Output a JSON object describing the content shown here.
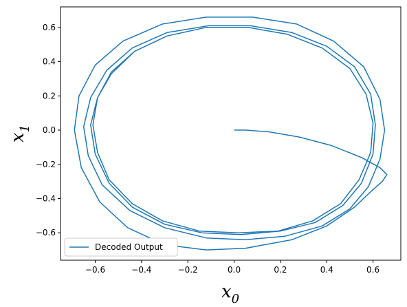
{
  "chart_data": {
    "type": "line",
    "title": "",
    "xlabel_main": "x",
    "xlabel_sub": "0",
    "ylabel_main": "x",
    "ylabel_sub": "1",
    "xlim": [
      -0.75,
      0.72
    ],
    "ylim": [
      -0.76,
      0.72
    ],
    "xticks": [
      -0.6,
      -0.4,
      -0.2,
      0.0,
      0.2,
      0.4,
      0.6
    ],
    "xtick_labels": [
      "−0.6",
      "−0.4",
      "−0.2",
      "0.0",
      "0.2",
      "0.4",
      "0.6"
    ],
    "yticks": [
      -0.6,
      -0.4,
      -0.2,
      0.0,
      0.2,
      0.4,
      0.6
    ],
    "ytick_labels": [
      "−0.6",
      "−0.4",
      "−0.2",
      "0.0",
      "0.2",
      "0.4",
      "0.6"
    ],
    "grid": false,
    "legend_position": "lower-left",
    "series": [
      {
        "name": "Decoded Output",
        "color": "#1f77b4",
        "description_points": [
          [
            0.0,
            0.0
          ],
          [
            0.05,
            0.0
          ],
          [
            0.15,
            -0.01
          ],
          [
            0.28,
            -0.04
          ],
          [
            0.42,
            -0.09
          ],
          [
            0.55,
            -0.16
          ],
          [
            0.63,
            -0.22
          ],
          [
            0.66,
            -0.26
          ],
          [
            0.64,
            -0.3
          ],
          [
            0.59,
            -0.36
          ],
          [
            0.52,
            -0.45
          ],
          [
            0.4,
            -0.56
          ],
          [
            0.25,
            -0.64
          ],
          [
            0.05,
            -0.69
          ],
          [
            -0.12,
            -0.7
          ],
          [
            -0.3,
            -0.67
          ],
          [
            -0.46,
            -0.57
          ],
          [
            -0.58,
            -0.42
          ],
          [
            -0.66,
            -0.22
          ],
          [
            -0.69,
            0.0
          ],
          [
            -0.67,
            0.2
          ],
          [
            -0.6,
            0.38
          ],
          [
            -0.48,
            0.52
          ],
          [
            -0.31,
            0.62
          ],
          [
            -0.12,
            0.66
          ],
          [
            0.08,
            0.66
          ],
          [
            0.27,
            0.62
          ],
          [
            0.43,
            0.52
          ],
          [
            0.56,
            0.37
          ],
          [
            0.63,
            0.18
          ],
          [
            0.65,
            0.0
          ],
          [
            0.63,
            -0.17
          ],
          [
            0.58,
            -0.33
          ],
          [
            0.5,
            -0.46
          ],
          [
            0.38,
            -0.56
          ],
          [
            0.22,
            -0.62
          ],
          [
            0.05,
            -0.64
          ],
          [
            -0.12,
            -0.63
          ],
          [
            -0.3,
            -0.57
          ],
          [
            -0.45,
            -0.47
          ],
          [
            -0.57,
            -0.32
          ],
          [
            -0.63,
            -0.15
          ],
          [
            -0.65,
            0.02
          ],
          [
            -0.62,
            0.19
          ],
          [
            -0.55,
            0.35
          ],
          [
            -0.44,
            0.48
          ],
          [
            -0.29,
            0.57
          ],
          [
            -0.11,
            0.61
          ],
          [
            0.07,
            0.61
          ],
          [
            0.25,
            0.57
          ],
          [
            0.4,
            0.49
          ],
          [
            0.52,
            0.37
          ],
          [
            0.59,
            0.21
          ],
          [
            0.61,
            0.03
          ],
          [
            0.6,
            -0.14
          ],
          [
            0.55,
            -0.31
          ],
          [
            0.47,
            -0.44
          ],
          [
            0.35,
            -0.54
          ],
          [
            0.2,
            -0.59
          ],
          [
            0.03,
            -0.61
          ],
          [
            -0.14,
            -0.6
          ],
          [
            -0.3,
            -0.55
          ],
          [
            -0.44,
            -0.45
          ],
          [
            -0.54,
            -0.31
          ],
          [
            -0.6,
            -0.14
          ],
          [
            -0.62,
            0.03
          ],
          [
            -0.59,
            0.19
          ],
          [
            -0.53,
            0.34
          ],
          [
            -0.43,
            0.46
          ],
          [
            -0.29,
            0.55
          ],
          [
            -0.12,
            0.6
          ],
          [
            0.06,
            0.6
          ],
          [
            0.23,
            0.56
          ],
          [
            0.38,
            0.48
          ],
          [
            0.5,
            0.36
          ],
          [
            0.57,
            0.21
          ],
          [
            0.6,
            0.04
          ],
          [
            0.59,
            -0.13
          ],
          [
            0.54,
            -0.29
          ],
          [
            0.46,
            -0.43
          ],
          [
            0.34,
            -0.53
          ],
          [
            0.19,
            -0.59
          ],
          [
            0.02,
            -0.6
          ],
          [
            -0.15,
            -0.59
          ],
          [
            -0.31,
            -0.53
          ],
          [
            -0.44,
            -0.43
          ],
          [
            -0.54,
            -0.29
          ],
          [
            -0.59,
            -0.13
          ],
          [
            -0.61,
            0.03
          ],
          [
            -0.59,
            0.19
          ],
          [
            -0.53,
            0.33
          ],
          [
            -0.43,
            0.46
          ],
          [
            -0.29,
            0.55
          ],
          [
            -0.12,
            0.6
          ],
          [
            0.06,
            0.6
          ],
          [
            0.23,
            0.56
          ],
          [
            0.38,
            0.48
          ],
          [
            0.5,
            0.36
          ],
          [
            0.57,
            0.21
          ],
          [
            0.6,
            0.04
          ],
          [
            0.59,
            -0.13
          ],
          [
            0.54,
            -0.29
          ],
          [
            0.46,
            -0.43
          ],
          [
            0.34,
            -0.53
          ],
          [
            0.19,
            -0.59
          ],
          [
            0.02,
            -0.6
          ],
          [
            -0.15,
            -0.59
          ],
          [
            -0.31,
            -0.53
          ],
          [
            -0.44,
            -0.43
          ],
          [
            -0.54,
            -0.29
          ],
          [
            -0.59,
            -0.13
          ],
          [
            -0.61,
            0.03
          ],
          [
            -0.59,
            0.19
          ],
          [
            -0.53,
            0.33
          ],
          [
            -0.43,
            0.46
          ],
          [
            -0.29,
            0.55
          ],
          [
            -0.12,
            0.6
          ],
          [
            0.06,
            0.6
          ],
          [
            0.23,
            0.56
          ],
          [
            0.38,
            0.48
          ],
          [
            0.5,
            0.36
          ],
          [
            0.57,
            0.21
          ],
          [
            0.6,
            0.04
          ],
          [
            0.59,
            -0.13
          ],
          [
            0.54,
            -0.29
          ],
          [
            0.46,
            -0.43
          ],
          [
            0.34,
            -0.53
          ],
          [
            0.19,
            -0.59
          ],
          [
            0.02,
            -0.6
          ]
        ]
      }
    ]
  }
}
